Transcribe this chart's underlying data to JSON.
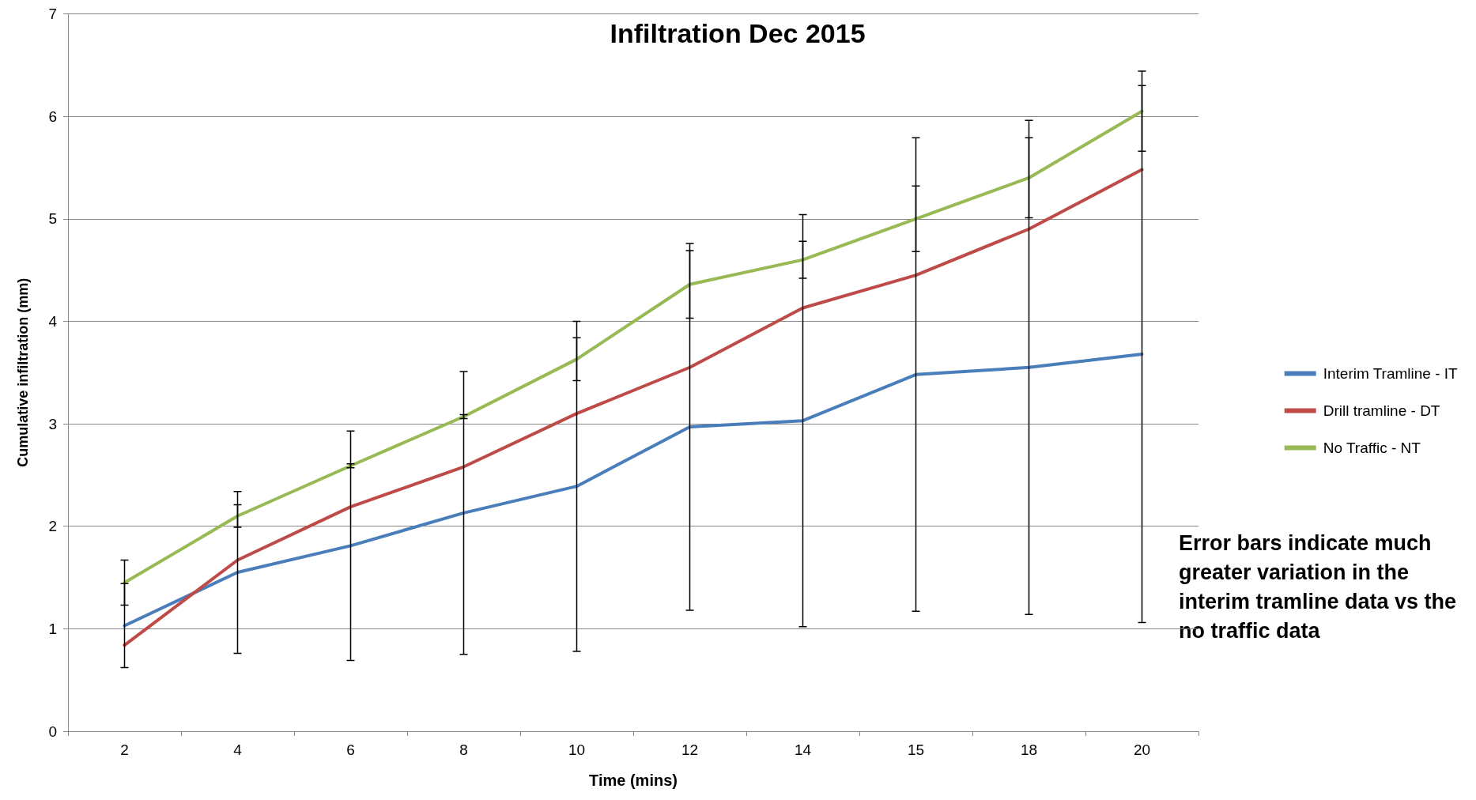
{
  "chart_data": {
    "type": "line",
    "title": "Infiltration Dec 2015",
    "xlabel": "Time (mins)",
    "ylabel": "Cumulative infiltration (mm)",
    "categories": [
      "2",
      "4",
      "6",
      "8",
      "10",
      "12",
      "14",
      "15",
      "18",
      "20"
    ],
    "series": [
      {
        "name": "Interim Tramline - IT",
        "color": "#4a7ebb",
        "values": [
          1.03,
          1.55,
          1.81,
          2.13,
          2.39,
          2.97,
          3.03,
          3.48,
          3.55,
          3.68
        ],
        "errors": [
          0.41,
          0.79,
          1.12,
          1.38,
          1.61,
          1.79,
          2.01,
          2.31,
          2.41,
          2.62
        ]
      },
      {
        "name": "Drill tramline - DT",
        "color": "#be4b48",
        "values": [
          0.84,
          1.67,
          2.19,
          2.58,
          3.1,
          3.55,
          4.13,
          4.45,
          4.9,
          5.48
        ]
      },
      {
        "name": "No Traffic - NT",
        "color": "#98b954",
        "values": [
          1.45,
          2.1,
          2.59,
          3.07,
          3.63,
          4.36,
          4.6,
          5.0,
          5.4,
          6.05
        ],
        "errors": [
          0.22,
          0.11,
          0.02,
          0.02,
          0.21,
          0.33,
          0.18,
          0.32,
          0.39,
          0.39
        ]
      }
    ],
    "ylim": [
      0,
      7
    ],
    "yticks": [
      0,
      1,
      2,
      3,
      4,
      5,
      6,
      7
    ],
    "grid": "y",
    "legend": "right",
    "marker": "none",
    "line_style": "solid",
    "annotations": [
      "Error bars indicate much greater variation in the interim tramline data vs the no traffic data"
    ]
  }
}
